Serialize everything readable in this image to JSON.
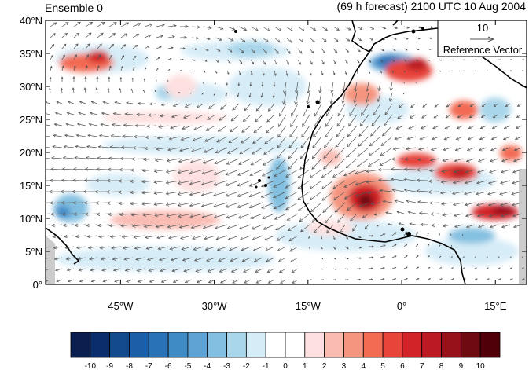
{
  "title_left": "Ensemble 0",
  "title_right": "(69 h forecast) 2100 UTC 10 Aug 2004",
  "reference_vector": {
    "value": "10",
    "label": "Reference Vector"
  },
  "lat_ticks": [
    {
      "value": 40,
      "label": "40°N"
    },
    {
      "value": 35,
      "label": "35°N"
    },
    {
      "value": 30,
      "label": "30°N"
    },
    {
      "value": 25,
      "label": "25°N"
    },
    {
      "value": 20,
      "label": "20°N"
    },
    {
      "value": 15,
      "label": "15°N"
    },
    {
      "value": 10,
      "label": "10°N"
    },
    {
      "value": 5,
      "label": "5°N"
    },
    {
      "value": 0,
      "label": "0°"
    }
  ],
  "lon_ticks": [
    {
      "value": -45,
      "label": "45°W"
    },
    {
      "value": -30,
      "label": "30°W"
    },
    {
      "value": -15,
      "label": "15°W"
    },
    {
      "value": 0,
      "label": "0°"
    },
    {
      "value": 15,
      "label": "15°E"
    }
  ],
  "colorbar": {
    "labels": [
      "-10",
      "-9",
      "-8",
      "-7",
      "-6",
      "-5",
      "-4",
      "-3",
      "-2",
      "-1",
      "0",
      "1",
      "2",
      "3",
      "4",
      "5",
      "6",
      "7",
      "8",
      "9",
      "10"
    ],
    "colors": [
      "#0a1f4e",
      "#0c2d6b",
      "#134a8e",
      "#1c5fa8",
      "#2a72b8",
      "#3f8bc6",
      "#5ea3d3",
      "#83bfe0",
      "#a9d6ea",
      "#d6ecf7",
      "#ffffff",
      "#ffffff",
      "#fde0df",
      "#f9bcb3",
      "#f5957f",
      "#f26b52",
      "#e8443a",
      "#d22428",
      "#bb1a22",
      "#97111b",
      "#700a12",
      "#500008"
    ]
  },
  "colors": {
    "land_outline": "#000000",
    "arrow": "#555555",
    "mask": "#cccccc"
  }
}
